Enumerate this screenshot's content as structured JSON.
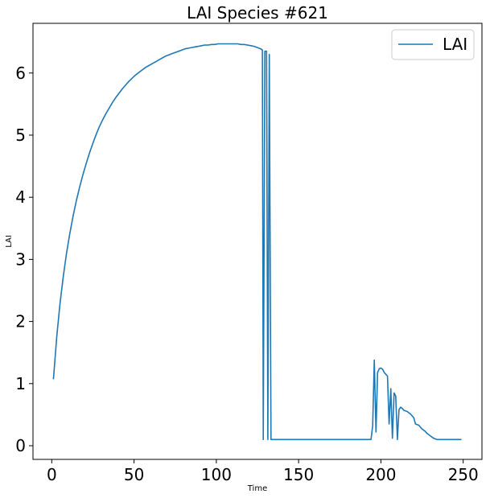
{
  "chart_data": {
    "type": "line",
    "title": "LAI Species #621",
    "xlabel": "Time",
    "ylabel": "LAI",
    "xlim": [
      -11.4,
      261.4
    ],
    "ylim": [
      -0.22,
      6.8
    ],
    "xticks": [
      0,
      50,
      100,
      150,
      200,
      250
    ],
    "yticks": [
      0,
      1,
      2,
      3,
      4,
      5,
      6
    ],
    "grid": false,
    "legend_position": "top-right",
    "color": "#1f77b4",
    "series": [
      {
        "name": "LAI",
        "points": [
          [
            1,
            1.07
          ],
          [
            3,
            1.75
          ],
          [
            5,
            2.28
          ],
          [
            7,
            2.72
          ],
          [
            9,
            3.1
          ],
          [
            11,
            3.42
          ],
          [
            13,
            3.7
          ],
          [
            15,
            3.95
          ],
          [
            17,
            4.17
          ],
          [
            19,
            4.37
          ],
          [
            21,
            4.55
          ],
          [
            23,
            4.72
          ],
          [
            25,
            4.87
          ],
          [
            27,
            5.01
          ],
          [
            29,
            5.14
          ],
          [
            31,
            5.25
          ],
          [
            33,
            5.35
          ],
          [
            35,
            5.44
          ],
          [
            37,
            5.53
          ],
          [
            39,
            5.61
          ],
          [
            41,
            5.68
          ],
          [
            43,
            5.75
          ],
          [
            45,
            5.81
          ],
          [
            47,
            5.87
          ],
          [
            49,
            5.92
          ],
          [
            51,
            5.97
          ],
          [
            53,
            6.01
          ],
          [
            55,
            6.05
          ],
          [
            57,
            6.09
          ],
          [
            59,
            6.12
          ],
          [
            61,
            6.15
          ],
          [
            63,
            6.18
          ],
          [
            65,
            6.21
          ],
          [
            67,
            6.24
          ],
          [
            69,
            6.27
          ],
          [
            71,
            6.29
          ],
          [
            73,
            6.31
          ],
          [
            75,
            6.33
          ],
          [
            77,
            6.35
          ],
          [
            79,
            6.37
          ],
          [
            81,
            6.39
          ],
          [
            83,
            6.4
          ],
          [
            85,
            6.41
          ],
          [
            87,
            6.42
          ],
          [
            89,
            6.43
          ],
          [
            91,
            6.44
          ],
          [
            93,
            6.45
          ],
          [
            95,
            6.45
          ],
          [
            97,
            6.46
          ],
          [
            99,
            6.46
          ],
          [
            101,
            6.47
          ],
          [
            103,
            6.47
          ],
          [
            105,
            6.47
          ],
          [
            107,
            6.47
          ],
          [
            109,
            6.47
          ],
          [
            111,
            6.47
          ],
          [
            113,
            6.47
          ],
          [
            115,
            6.46
          ],
          [
            117,
            6.46
          ],
          [
            119,
            6.45
          ],
          [
            121,
            6.44
          ],
          [
            123,
            6.43
          ],
          [
            125,
            6.41
          ],
          [
            127,
            6.39
          ],
          [
            128,
            6.37
          ],
          [
            128.5,
            0.1
          ],
          [
            129.5,
            6.35
          ],
          [
            130.5,
            6.35
          ],
          [
            131.3,
            0.1
          ],
          [
            132.2,
            6.3
          ],
          [
            133.2,
            0.1
          ],
          [
            194,
            0.1
          ],
          [
            195,
            0.32
          ],
          [
            196,
            1.38
          ],
          [
            197,
            0.22
          ],
          [
            198,
            1.18
          ],
          [
            199,
            1.24
          ],
          [
            200,
            1.25
          ],
          [
            201,
            1.23
          ],
          [
            202,
            1.18
          ],
          [
            203,
            1.15
          ],
          [
            204,
            1.12
          ],
          [
            205,
            0.35
          ],
          [
            206,
            0.92
          ],
          [
            207,
            0.12
          ],
          [
            208,
            0.85
          ],
          [
            209,
            0.8
          ],
          [
            210,
            0.1
          ],
          [
            211,
            0.58
          ],
          [
            212,
            0.62
          ],
          [
            213,
            0.6
          ],
          [
            214,
            0.57
          ],
          [
            215,
            0.56
          ],
          [
            216,
            0.55
          ],
          [
            217,
            0.53
          ],
          [
            218,
            0.51
          ],
          [
            219,
            0.48
          ],
          [
            220,
            0.45
          ],
          [
            221,
            0.35
          ],
          [
            222,
            0.34
          ],
          [
            223,
            0.33
          ],
          [
            224,
            0.3
          ],
          [
            225,
            0.27
          ],
          [
            226,
            0.25
          ],
          [
            227,
            0.23
          ],
          [
            228,
            0.2
          ],
          [
            229,
            0.18
          ],
          [
            230,
            0.16
          ],
          [
            231,
            0.14
          ],
          [
            232,
            0.12
          ],
          [
            233,
            0.11
          ],
          [
            234,
            0.1
          ],
          [
            249,
            0.1
          ]
        ]
      }
    ]
  }
}
